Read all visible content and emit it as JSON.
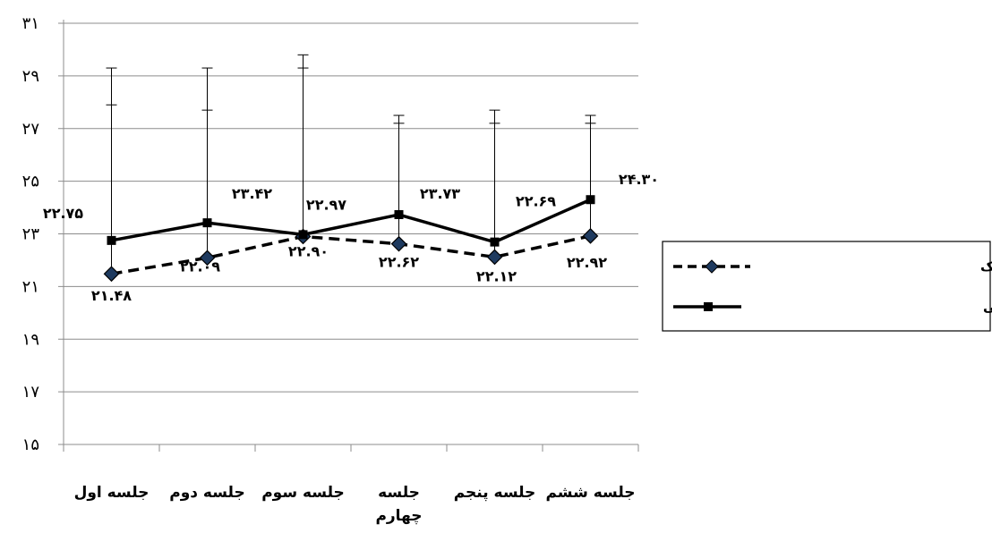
{
  "chart_data": {
    "type": "line",
    "categories": [
      "جلسه اول",
      "جلسه دوم",
      "جلسه سوم",
      "جلسه چهارم",
      "جلسه پنجم",
      "جلسه ششم"
    ],
    "category_display": [
      [
        "جلسه اول"
      ],
      [
        "جلسه دوم"
      ],
      [
        "جلسه سوم"
      ],
      [
        "جلسه",
        "چهارم"
      ],
      [
        "جلسه پنجم"
      ],
      [
        "جلسه ششم"
      ]
    ],
    "ylim": [
      15,
      31
    ],
    "yticks": [
      15,
      17,
      19,
      21,
      23,
      25,
      27,
      29,
      31
    ],
    "ytick_labels": [
      "۱۵",
      "۱۷",
      "۱۹",
      "۲۱",
      "۲۳",
      "۲۵",
      "۲۷",
      "۲۹",
      "۳۱"
    ],
    "grid": true,
    "legend_position": "right",
    "series": [
      {
        "name": "آنتی سایکوتیک",
        "style": "dashed",
        "marker": "diamond",
        "color": "#000000",
        "values": [
          21.48,
          22.09,
          22.9,
          22.62,
          22.12,
          22.92
        ],
        "labels": [
          "۲۱.۴۸",
          "۲۲.۰۹",
          "۲۲.۹۰",
          "۲۲.۶۲",
          "۲۲.۱۲",
          "۲۲.۹۲"
        ],
        "error_upper": [
          29.3,
          29.3,
          29.3,
          27.5,
          27.7,
          27.5
        ]
      },
      {
        "name": "آنتی سایکوتیک و ضد افسردگی",
        "style": "solid",
        "marker": "square",
        "color": "#000000",
        "values": [
          22.75,
          23.42,
          22.97,
          23.73,
          22.69,
          24.3
        ],
        "labels": [
          "۲۲.۷۵",
          "۲۳.۴۲",
          "۲۲.۹۷",
          "۲۳.۷۳",
          "۲۲.۶۹",
          "۲۴.۳۰"
        ],
        "error_upper": [
          27.9,
          27.7,
          29.8,
          27.2,
          27.2,
          27.2
        ]
      }
    ]
  }
}
